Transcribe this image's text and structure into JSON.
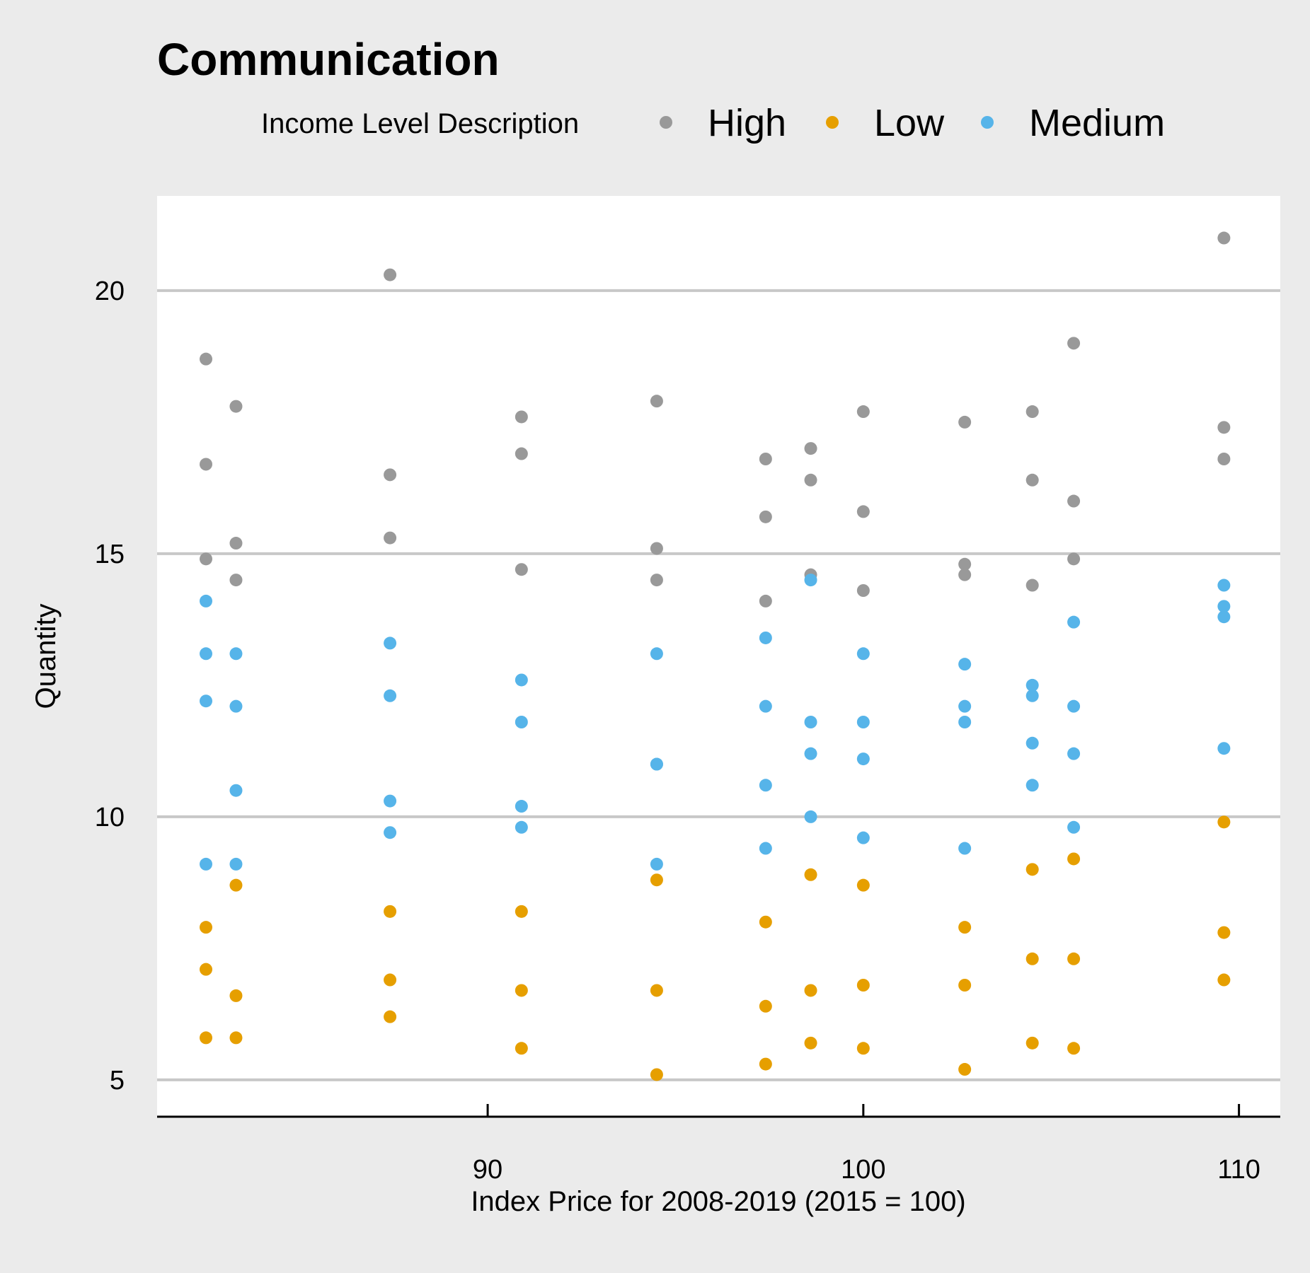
{
  "chart_data": {
    "type": "scatter",
    "title": "Communication",
    "xlabel": "Index Price for 2008-2019 (2015 = 100)",
    "ylabel": "Quantity",
    "xlim": [
      81.2,
      111.1
    ],
    "ylim": [
      4.3,
      21.8
    ],
    "xticks": [
      90,
      100,
      110
    ],
    "yticks": [
      5,
      10,
      15,
      20
    ],
    "grid": "horizontal",
    "legend": {
      "title": "Income Level Description",
      "position": "top"
    },
    "series": [
      {
        "name": "High",
        "color": "#999999",
        "points": [
          [
            82.5,
            18.7
          ],
          [
            82.5,
            16.7
          ],
          [
            82.5,
            14.9
          ],
          [
            83.3,
            17.8
          ],
          [
            83.3,
            15.2
          ],
          [
            83.3,
            14.5
          ],
          [
            87.4,
            20.3
          ],
          [
            87.4,
            16.5
          ],
          [
            87.4,
            15.3
          ],
          [
            90.9,
            17.6
          ],
          [
            90.9,
            16.9
          ],
          [
            90.9,
            14.7
          ],
          [
            94.5,
            17.9
          ],
          [
            94.5,
            15.1
          ],
          [
            94.5,
            14.5
          ],
          [
            97.4,
            16.8
          ],
          [
            97.4,
            15.7
          ],
          [
            97.4,
            14.1
          ],
          [
            98.6,
            17.0
          ],
          [
            98.6,
            16.4
          ],
          [
            98.6,
            14.6
          ],
          [
            100.0,
            17.7
          ],
          [
            100.0,
            15.8
          ],
          [
            100.0,
            14.3
          ],
          [
            102.7,
            17.5
          ],
          [
            102.7,
            14.8
          ],
          [
            102.7,
            14.6
          ],
          [
            104.5,
            17.7
          ],
          [
            104.5,
            16.4
          ],
          [
            104.5,
            14.4
          ],
          [
            105.6,
            19.0
          ],
          [
            105.6,
            16.0
          ],
          [
            105.6,
            14.9
          ],
          [
            109.6,
            21.0
          ],
          [
            109.6,
            17.4
          ],
          [
            109.6,
            16.8
          ]
        ]
      },
      {
        "name": "Low",
        "color": "#e69f00",
        "points": [
          [
            82.5,
            7.9
          ],
          [
            82.5,
            7.1
          ],
          [
            82.5,
            5.8
          ],
          [
            83.3,
            8.7
          ],
          [
            83.3,
            6.6
          ],
          [
            83.3,
            5.8
          ],
          [
            87.4,
            8.2
          ],
          [
            87.4,
            6.9
          ],
          [
            87.4,
            6.2
          ],
          [
            90.9,
            8.2
          ],
          [
            90.9,
            6.7
          ],
          [
            90.9,
            5.6
          ],
          [
            94.5,
            8.8
          ],
          [
            94.5,
            6.7
          ],
          [
            94.5,
            5.1
          ],
          [
            97.4,
            8.0
          ],
          [
            97.4,
            6.4
          ],
          [
            97.4,
            5.3
          ],
          [
            98.6,
            8.9
          ],
          [
            98.6,
            6.7
          ],
          [
            98.6,
            5.7
          ],
          [
            100.0,
            8.7
          ],
          [
            100.0,
            6.8
          ],
          [
            100.0,
            5.6
          ],
          [
            102.7,
            7.9
          ],
          [
            102.7,
            6.8
          ],
          [
            102.7,
            5.2
          ],
          [
            104.5,
            9.0
          ],
          [
            104.5,
            7.3
          ],
          [
            104.5,
            5.7
          ],
          [
            105.6,
            9.2
          ],
          [
            105.6,
            7.3
          ],
          [
            105.6,
            5.6
          ],
          [
            109.6,
            9.9
          ],
          [
            109.6,
            7.8
          ],
          [
            109.6,
            6.9
          ]
        ]
      },
      {
        "name": "Medium",
        "color": "#56b4e9",
        "points": [
          [
            82.5,
            14.1
          ],
          [
            82.5,
            13.1
          ],
          [
            82.5,
            12.2
          ],
          [
            82.5,
            9.1
          ],
          [
            83.3,
            13.1
          ],
          [
            83.3,
            12.1
          ],
          [
            83.3,
            10.5
          ],
          [
            83.3,
            9.1
          ],
          [
            87.4,
            13.3
          ],
          [
            87.4,
            12.3
          ],
          [
            87.4,
            10.3
          ],
          [
            87.4,
            9.7
          ],
          [
            90.9,
            12.6
          ],
          [
            90.9,
            11.8
          ],
          [
            90.9,
            10.2
          ],
          [
            90.9,
            9.8
          ],
          [
            94.5,
            13.1
          ],
          [
            94.5,
            11.0
          ],
          [
            94.5,
            11.0
          ],
          [
            94.5,
            9.1
          ],
          [
            97.4,
            13.4
          ],
          [
            97.4,
            12.1
          ],
          [
            97.4,
            10.6
          ],
          [
            97.4,
            9.4
          ],
          [
            98.6,
            14.5
          ],
          [
            98.6,
            11.8
          ],
          [
            98.6,
            11.2
          ],
          [
            98.6,
            10.0
          ],
          [
            100.0,
            13.1
          ],
          [
            100.0,
            11.8
          ],
          [
            100.0,
            11.1
          ],
          [
            100.0,
            9.6
          ],
          [
            102.7,
            12.9
          ],
          [
            102.7,
            12.1
          ],
          [
            102.7,
            11.8
          ],
          [
            102.7,
            9.4
          ],
          [
            104.5,
            12.5
          ],
          [
            104.5,
            12.3
          ],
          [
            104.5,
            11.4
          ],
          [
            104.5,
            10.6
          ],
          [
            105.6,
            13.7
          ],
          [
            105.6,
            12.1
          ],
          [
            105.6,
            11.2
          ],
          [
            105.6,
            9.8
          ],
          [
            109.6,
            14.4
          ],
          [
            109.6,
            14.0
          ],
          [
            109.6,
            13.8
          ],
          [
            109.6,
            11.3
          ]
        ]
      }
    ]
  }
}
